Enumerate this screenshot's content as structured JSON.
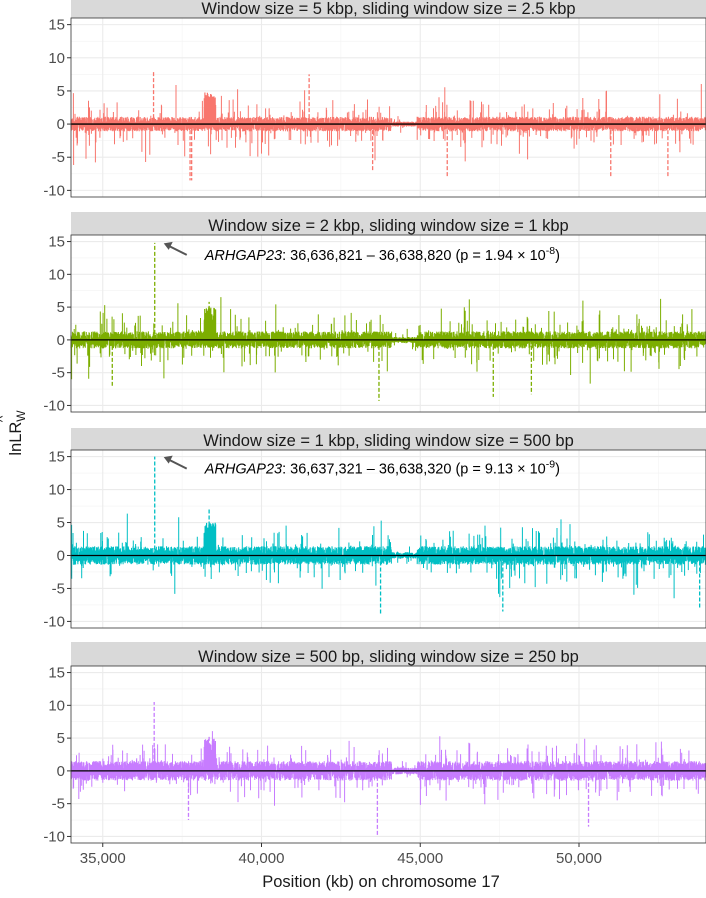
{
  "figure": {
    "ylabel": "lnLR",
    "ylabel_sub": "W",
    "ylabel_hat": "^",
    "xlabel": "Position (kb) on chromosome 17"
  },
  "chart_data": [
    {
      "type": "bar",
      "title": "Window size = 5 kbp, sliding window size = 2.5 kbp",
      "color": "#F8766D",
      "xlim": [
        34000,
        54000
      ],
      "ylim": [
        -11,
        16
      ],
      "yticks": [
        "15",
        "10",
        "5",
        "0",
        "-5",
        "-10"
      ],
      "ytick_values": [
        15,
        10,
        5,
        0,
        -5,
        -10
      ],
      "n_windows": 8000,
      "noise_scale": 1.1,
      "peaks": [
        {
          "x": 36600,
          "y": 8
        },
        {
          "x": 38350,
          "y": 4
        },
        {
          "x": 41500,
          "y": 7.5
        },
        {
          "x": 37750,
          "y": -8.5
        }
      ],
      "troughs": [
        {
          "x": 37800,
          "y": -8.5
        },
        {
          "x": 43500,
          "y": -7
        },
        {
          "x": 45850,
          "y": -8
        },
        {
          "x": 52800,
          "y": -8
        },
        {
          "x": 51000,
          "y": -8
        }
      ],
      "annotation": null
    },
    {
      "type": "bar",
      "title": "Window size = 2 kbp, sliding window size = 1 kbp",
      "color": "#7CAE00",
      "xlim": [
        34000,
        54000
      ],
      "ylim": [
        -11,
        16
      ],
      "yticks": [
        "15",
        "10",
        "5",
        "0",
        "-5",
        "-10"
      ],
      "ytick_values": [
        15,
        10,
        5,
        0,
        -5,
        -10
      ],
      "n_windows": 20000,
      "noise_scale": 1.3,
      "peaks": [
        {
          "x": 36637,
          "y": 14.8
        },
        {
          "x": 38350,
          "y": 5.8
        }
      ],
      "troughs": [
        {
          "x": 43700,
          "y": -9.3
        },
        {
          "x": 47300,
          "y": -8.7
        },
        {
          "x": 48500,
          "y": -8.3
        },
        {
          "x": 35300,
          "y": -7
        }
      ],
      "annotation": {
        "gene": "ARHGAP23",
        "text": ": 36,636,821 – 36,638,820 (p = 1.94 × 10",
        "exponent": "-8",
        "suffix": ")",
        "x": 36637,
        "y": 14.8
      }
    },
    {
      "type": "bar",
      "title": "Window size = 1 kbp, sliding window size = 500 bp",
      "color": "#00BFC4",
      "xlim": [
        34000,
        54000
      ],
      "ylim": [
        -11,
        16
      ],
      "yticks": [
        "15",
        "10",
        "5",
        "0",
        "-5",
        "-10"
      ],
      "ytick_values": [
        15,
        10,
        5,
        0,
        -5,
        -10
      ],
      "n_windows": 40000,
      "noise_scale": 1.4,
      "peaks": [
        {
          "x": 36637,
          "y": 15
        },
        {
          "x": 38350,
          "y": 7
        }
      ],
      "troughs": [
        {
          "x": 43750,
          "y": -9
        },
        {
          "x": 47600,
          "y": -8.5
        },
        {
          "x": 53800,
          "y": -8
        }
      ],
      "annotation": {
        "gene": "ARHGAP23",
        "text": ": 36,637,321 – 36,638,320 (p = 9.13 × 10",
        "exponent": "-9",
        "suffix": ")",
        "x": 36637,
        "y": 15
      }
    },
    {
      "type": "bar",
      "title": "Window size = 500 bp, sliding window size = 250 bp",
      "color": "#C77CFF",
      "xlim": [
        34000,
        54000
      ],
      "ylim": [
        -11,
        16
      ],
      "yticks": [
        "15",
        "10",
        "5",
        "0",
        "-5",
        "-10"
      ],
      "ytick_values": [
        15,
        10,
        5,
        0,
        -5,
        -10
      ],
      "xticks": [
        "35,000",
        "40,000",
        "45,000",
        "50,000"
      ],
      "xtick_values": [
        35000,
        40000,
        45000,
        50000
      ],
      "n_windows": 80000,
      "noise_scale": 1.5,
      "peaks": [
        {
          "x": 36620,
          "y": 10.5
        },
        {
          "x": 38350,
          "y": 5.5
        }
      ],
      "troughs": [
        {
          "x": 43650,
          "y": -10
        },
        {
          "x": 50300,
          "y": -8.5
        },
        {
          "x": 37700,
          "y": -7.5
        }
      ],
      "annotation": null
    }
  ]
}
